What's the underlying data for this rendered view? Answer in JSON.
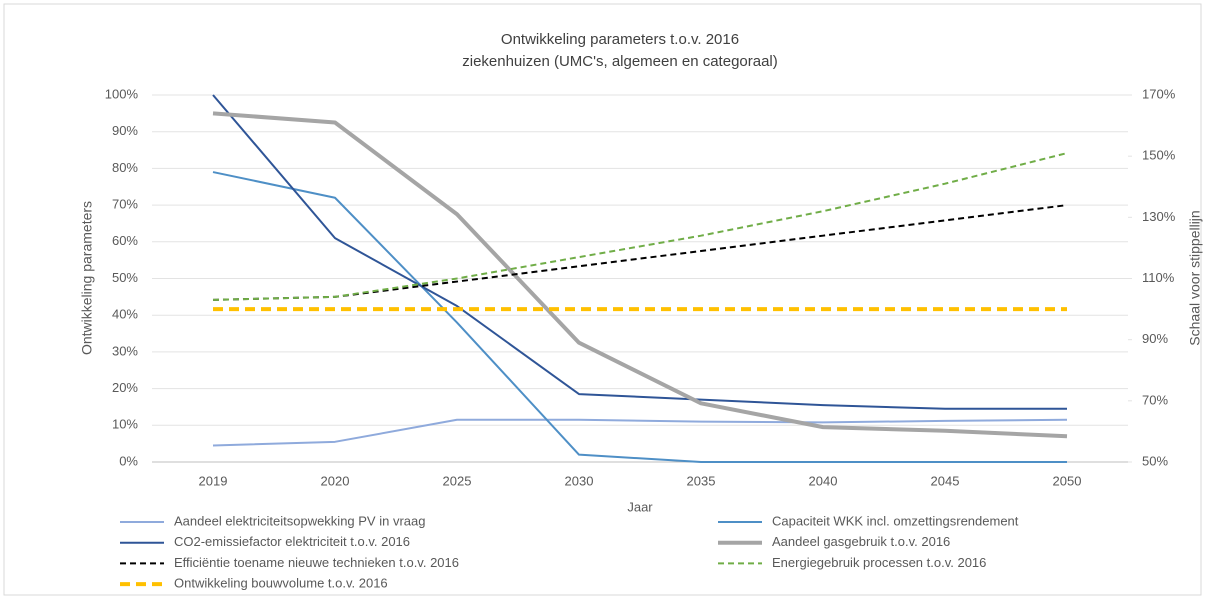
{
  "chart_data": {
    "type": "line",
    "title": "Ontwikkeling parameters t.o.v. 2016",
    "subtitle": "ziekenhuizen (UMC's, algemeen en categoraal)",
    "xlabel": "Jaar",
    "ylabel": "Ontwikkeling parameters",
    "y2label": "Schaal voor stippellijn",
    "categories": [
      "2019",
      "2020",
      "2025",
      "2030",
      "2035",
      "2040",
      "2045",
      "2050"
    ],
    "ylim": [
      0,
      100
    ],
    "yticks": [
      {
        "value": 0,
        "label": "0%"
      },
      {
        "value": 10,
        "label": "10%"
      },
      {
        "value": 20,
        "label": "20%"
      },
      {
        "value": 30,
        "label": "30%"
      },
      {
        "value": 40,
        "label": "40%"
      },
      {
        "value": 50,
        "label": "50%"
      },
      {
        "value": 60,
        "label": "60%"
      },
      {
        "value": 70,
        "label": "70%"
      },
      {
        "value": 80,
        "label": "80%"
      },
      {
        "value": 90,
        "label": "90%"
      },
      {
        "value": 100,
        "label": "100%"
      }
    ],
    "y2lim": [
      50,
      170
    ],
    "y2ticks": [
      {
        "value": 50,
        "label": "50%"
      },
      {
        "value": 70,
        "label": "70%"
      },
      {
        "value": 90,
        "label": "90%"
      },
      {
        "value": 110,
        "label": "110%"
      },
      {
        "value": 130,
        "label": "130%"
      },
      {
        "value": 150,
        "label": "150%"
      },
      {
        "value": 170,
        "label": "170%"
      }
    ],
    "grid": true,
    "series": [
      {
        "name": "Aandeel elektriciteitsopwekking PV in vraag",
        "color": "#8faadc",
        "width": 2,
        "dash": false,
        "values": [
          4.5,
          5.5,
          11.5,
          11.5,
          11,
          10.8,
          11.2,
          11.5
        ]
      },
      {
        "name": "Capaciteit WKK incl. omzettingsrendement",
        "color": "#4e8fc6",
        "width": 2,
        "dash": false,
        "values": [
          79,
          72,
          38,
          2,
          0,
          0,
          0,
          0
        ]
      },
      {
        "name": "CO2-emissiefactor elektriciteit t.o.v. 2016",
        "color": "#2f5597",
        "width": 2,
        "dash": false,
        "values": [
          100,
          61,
          42.5,
          18.5,
          17,
          15.5,
          14.5,
          14.5
        ]
      },
      {
        "name": "Aandeel gasgebruik t.o.v. 2016",
        "color": "#a5a5a5",
        "width": 4,
        "dash": false,
        "values": [
          95,
          92.5,
          67.5,
          32.5,
          16,
          9.5,
          8.5,
          7
        ]
      },
      {
        "name": "Efficiëntie toename nieuwe technieken t.o.v. 2016",
        "color": "#000000",
        "width": 2,
        "dash": true,
        "axis": "y2",
        "values": [
          103,
          104,
          109,
          114,
          119,
          124,
          129,
          134
        ]
      },
      {
        "name": "Energiegebruik processen t.o.v. 2016",
        "color": "#70ad47",
        "width": 2,
        "dash": true,
        "axis": "y2",
        "values": [
          103,
          104,
          110,
          117,
          124,
          132,
          141,
          151
        ]
      },
      {
        "name": "Ontwikkeling bouwvolume t.o.v. 2016",
        "color": "#ffc000",
        "width": 4,
        "dash": true,
        "axis": "y2",
        "values": [
          100,
          100,
          100,
          100,
          100,
          100,
          100,
          100
        ]
      }
    ]
  }
}
